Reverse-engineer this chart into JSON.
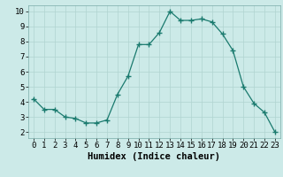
{
  "x": [
    0,
    1,
    2,
    3,
    4,
    5,
    6,
    7,
    8,
    9,
    10,
    11,
    12,
    13,
    14,
    15,
    16,
    17,
    18,
    19,
    20,
    21,
    22,
    23
  ],
  "y": [
    4.2,
    3.5,
    3.5,
    3.0,
    2.9,
    2.6,
    2.6,
    2.8,
    4.5,
    5.7,
    7.8,
    7.8,
    8.6,
    10.0,
    9.4,
    9.4,
    9.5,
    9.3,
    8.5,
    7.4,
    5.0,
    3.9,
    3.3,
    2.0
  ],
  "xlabel": "Humidex (Indice chaleur)",
  "line_color": "#1a7a6e",
  "marker_color": "#1a7a6e",
  "bg_color": "#cceae8",
  "grid_color": "#b0d4d0",
  "ylim": [
    1.6,
    10.4
  ],
  "xlim": [
    -0.5,
    23.5
  ],
  "yticks": [
    2,
    3,
    4,
    5,
    6,
    7,
    8,
    9,
    10
  ],
  "xticks": [
    0,
    1,
    2,
    3,
    4,
    5,
    6,
    7,
    8,
    9,
    10,
    11,
    12,
    13,
    14,
    15,
    16,
    17,
    18,
    19,
    20,
    21,
    22,
    23
  ],
  "xlabel_fontsize": 7.5,
  "tick_fontsize": 6.5
}
